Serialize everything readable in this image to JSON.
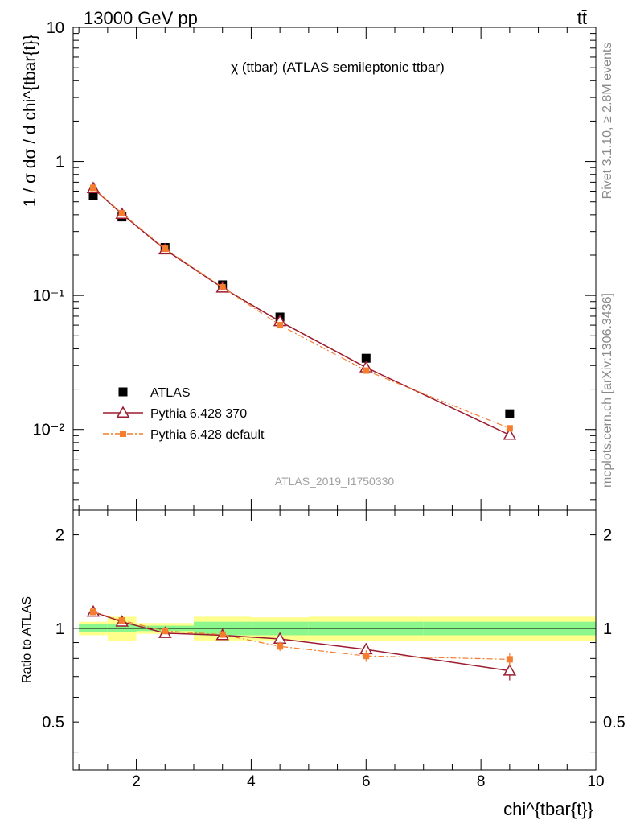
{
  "header": {
    "left": "13000 GeV pp",
    "right": "tt̄"
  },
  "side_labels": {
    "rivet": "Rivet 3.1.10, ≥ 2.8M events",
    "mcplots": "mcplots.cern.ch [arXiv:1306.3436]"
  },
  "chart_data": [
    {
      "type": "scatter",
      "title": "χ (ttbar) (ATLAS semileptonic ttbar)",
      "ylabel": "1 / σ dσ / d chi^{tbar{t}}",
      "xlim": [
        0.9,
        10
      ],
      "ylim": [
        0.0025,
        10
      ],
      "yscale": "log",
      "watermark": "ATLAS_2019_I1750330",
      "legend_position": "bottom-left",
      "xticks": [
        "2",
        "4",
        "6",
        "8",
        "10"
      ],
      "yticks": [
        {
          "value": 10,
          "label": "10"
        },
        {
          "value": 1,
          "label": "1"
        },
        {
          "value": 0.1,
          "label": "10⁻¹"
        },
        {
          "value": 0.01,
          "label": "10⁻²"
        }
      ],
      "series": [
        {
          "name": "ATLAS",
          "color": "#000000",
          "marker": "square",
          "x": [
            1.25,
            1.75,
            2.5,
            3.5,
            4.5,
            6.0,
            8.5
          ],
          "y": [
            0.56,
            0.385,
            0.228,
            0.12,
            0.069,
            0.034,
            0.0131
          ]
        },
        {
          "name": "Pythia 6.428 370",
          "color": "#9b1b30",
          "marker": "triangle-open",
          "line": "solid",
          "x": [
            1.25,
            1.75,
            2.5,
            3.5,
            4.5,
            6.0,
            8.5
          ],
          "y": [
            0.63,
            0.405,
            0.22,
            0.114,
            0.064,
            0.029,
            0.0091
          ]
        },
        {
          "name": "Pythia 6.428 default",
          "color": "#f47d2f",
          "marker": "square-small",
          "line": "dashdot",
          "x": [
            1.25,
            1.75,
            2.5,
            3.5,
            4.5,
            6.0,
            8.5
          ],
          "y": [
            0.635,
            0.41,
            0.223,
            0.115,
            0.06,
            0.0275,
            0.0102
          ]
        }
      ]
    },
    {
      "type": "scatter",
      "ylabel": "Ratio to ATLAS",
      "xlabel": "chi^{tbar{t}}",
      "xlim": [
        0.9,
        10
      ],
      "ylim": [
        0.35,
        2.4
      ],
      "yscale": "log",
      "yticks": [
        {
          "value": 0.5,
          "label": "0.5"
        },
        {
          "value": 1,
          "label": "1"
        },
        {
          "value": 2,
          "label": "2"
        }
      ],
      "bands": {
        "bin_edges": [
          1.0,
          1.5,
          2.0,
          3.0,
          4.0,
          5.0,
          7.0,
          10.0
        ],
        "stat_half_width": [
          0.03,
          0.03,
          0.02,
          0.05,
          0.05,
          0.05,
          0.05
        ],
        "total_half_width": [
          0.05,
          0.09,
          0.04,
          0.09,
          0.085,
          0.09,
          0.09
        ],
        "stat_color": "#8cf78c",
        "total_color": "#ffff8c"
      },
      "series": [
        {
          "name": "Pythia 6.428 370",
          "color": "#9b1b30",
          "x": [
            1.25,
            1.75,
            2.5,
            3.5,
            4.5,
            6.0,
            8.5
          ],
          "y": [
            1.13,
            1.05,
            0.965,
            0.95,
            0.925,
            0.855,
            0.73
          ],
          "err": [
            0.015,
            0.012,
            0.012,
            0.02,
            0.03,
            0.04,
            0.05
          ]
        },
        {
          "name": "Pythia 6.428 default",
          "color": "#f47d2f",
          "x": [
            1.25,
            1.75,
            2.5,
            3.5,
            4.5,
            6.0,
            8.5
          ],
          "y": [
            1.13,
            1.06,
            0.98,
            0.955,
            0.875,
            0.815,
            0.795
          ],
          "err": [
            0.015,
            0.012,
            0.012,
            0.02,
            0.03,
            0.035,
            0.04
          ]
        }
      ]
    }
  ]
}
